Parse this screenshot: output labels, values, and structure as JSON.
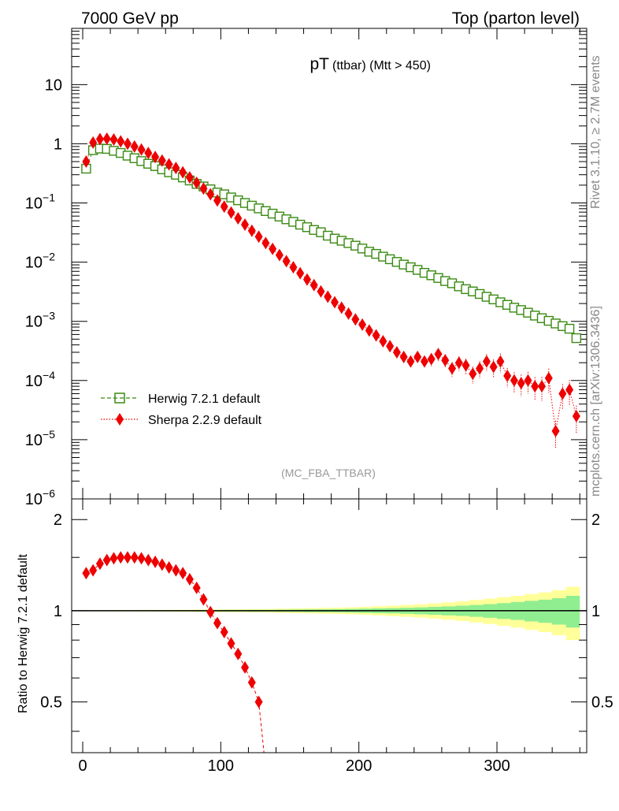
{
  "header": {
    "left": "7000 GeV pp",
    "right": "Top (parton level)"
  },
  "side": {
    "rivet": "Rivet 3.1.10, ≥ 2.7M events",
    "mcplots": "mcplots.cern.ch [arXiv:1306.3436]"
  },
  "chart_data": [
    {
      "type": "scatter",
      "title": "pT",
      "title_sub": "(ttbar) (Mtt > 450)",
      "watermark": "(MC_FBA_TTBAR)",
      "xlim": [
        -8,
        365
      ],
      "ylim_log10": [
        -6,
        1.95
      ],
      "yscale": "log",
      "y_ticks": [
        {
          "exp": 1,
          "label": "10"
        },
        {
          "exp": 0,
          "label": "1"
        },
        {
          "exp": -1,
          "base": "10",
          "sup": "−1"
        },
        {
          "exp": -2,
          "base": "10",
          "sup": "−2"
        },
        {
          "exp": -3,
          "base": "10",
          "sup": "−3"
        },
        {
          "exp": -4,
          "base": "10",
          "sup": "−4"
        },
        {
          "exp": -5,
          "base": "10",
          "sup": "−5"
        },
        {
          "exp": -6,
          "base": "10",
          "sup": "−6"
        }
      ],
      "legend_position": "lower-left",
      "series": [
        {
          "name": "Herwig 7.2.1 default",
          "color": "#3a8a12",
          "marker": "open-square",
          "line": "dashed",
          "x": [
            2.5,
            7.5,
            12.5,
            17.5,
            22.5,
            27.5,
            32.5,
            37.5,
            42.5,
            47.5,
            52.5,
            57.5,
            62.5,
            67.5,
            72.5,
            77.5,
            82.5,
            87.5,
            92.5,
            97.5,
            102.5,
            107.5,
            112.5,
            117.5,
            122.5,
            127.5,
            132.5,
            137.5,
            142.5,
            147.5,
            152.5,
            157.5,
            162.5,
            167.5,
            172.5,
            177.5,
            182.5,
            187.5,
            192.5,
            197.5,
            202.5,
            207.5,
            212.5,
            217.5,
            222.5,
            227.5,
            232.5,
            237.5,
            242.5,
            247.5,
            252.5,
            257.5,
            262.5,
            267.5,
            272.5,
            277.5,
            282.5,
            287.5,
            292.5,
            297.5,
            302.5,
            307.5,
            312.5,
            317.5,
            322.5,
            327.5,
            332.5,
            337.5,
            342.5,
            347.5,
            352.5,
            357.5
          ],
          "y": [
            0.38,
            0.78,
            0.83,
            0.82,
            0.76,
            0.7,
            0.63,
            0.57,
            0.51,
            0.46,
            0.42,
            0.37,
            0.33,
            0.3,
            0.27,
            0.24,
            0.21,
            0.19,
            0.17,
            0.15,
            0.14,
            0.124,
            0.111,
            0.1,
            0.09,
            0.081,
            0.073,
            0.066,
            0.059,
            0.053,
            0.048,
            0.043,
            0.039,
            0.035,
            0.032,
            0.028,
            0.025,
            0.023,
            0.021,
            0.019,
            0.017,
            0.015,
            0.0138,
            0.0124,
            0.0112,
            0.0101,
            0.0091,
            0.0082,
            0.0074,
            0.0066,
            0.006,
            0.0054,
            0.0048,
            0.0044,
            0.0039,
            0.0035,
            0.0032,
            0.0029,
            0.0026,
            0.00235,
            0.0021,
            0.0019,
            0.0017,
            0.00155,
            0.0014,
            0.00125,
            0.00113,
            0.00102,
            0.00092,
            0.00083,
            0.00075,
            0.00052
          ]
        },
        {
          "name": "Sherpa 2.2.9 default",
          "color": "#ee0000",
          "marker": "filled-diamond",
          "line": "dotted",
          "x": [
            2.5,
            7.5,
            12.5,
            17.5,
            22.5,
            27.5,
            32.5,
            37.5,
            42.5,
            47.5,
            52.5,
            57.5,
            62.5,
            67.5,
            72.5,
            77.5,
            82.5,
            87.5,
            92.5,
            97.5,
            102.5,
            107.5,
            112.5,
            117.5,
            122.5,
            127.5,
            132.5,
            137.5,
            142.5,
            147.5,
            152.5,
            157.5,
            162.5,
            167.5,
            172.5,
            177.5,
            182.5,
            187.5,
            192.5,
            197.5,
            202.5,
            207.5,
            212.5,
            217.5,
            222.5,
            227.5,
            232.5,
            237.5,
            242.5,
            247.5,
            252.5,
            257.5,
            262.5,
            267.5,
            272.5,
            277.5,
            282.5,
            287.5,
            292.5,
            297.5,
            302.5,
            307.5,
            312.5,
            317.5,
            322.5,
            327.5,
            332.5,
            337.5,
            342.5,
            347.5,
            352.5,
            357.5
          ],
          "y": [
            0.5,
            1.05,
            1.2,
            1.22,
            1.18,
            1.1,
            1.0,
            0.9,
            0.8,
            0.7,
            0.6,
            0.52,
            0.45,
            0.39,
            0.33,
            0.27,
            0.22,
            0.175,
            0.14,
            0.11,
            0.087,
            0.069,
            0.055,
            0.043,
            0.034,
            0.027,
            0.021,
            0.0168,
            0.0132,
            0.0104,
            0.0082,
            0.0065,
            0.0051,
            0.0041,
            0.0032,
            0.0026,
            0.0021,
            0.0017,
            0.00135,
            0.00108,
            0.00088,
            0.0007,
            0.00058,
            0.00046,
            0.00038,
            0.0003,
            0.00025,
            0.00021,
            0.00025,
            0.00021,
            0.00023,
            0.00028,
            0.00022,
            0.00016,
            0.0002,
            0.00018,
            0.00013,
            0.00016,
            0.00021,
            0.00017,
            0.00021,
            0.00012,
            0.0001,
            9e-05,
            0.0001,
            8e-05,
            8e-05,
            0.00011,
            1.4e-05,
            6e-05,
            7e-05,
            2.5e-05
          ],
          "err_rel": [
            0.04,
            0.02,
            0.02,
            0.02,
            0.02,
            0.02,
            0.02,
            0.02,
            0.02,
            0.02,
            0.03,
            0.03,
            0.03,
            0.03,
            0.03,
            0.03,
            0.03,
            0.03,
            0.04,
            0.04,
            0.04,
            0.05,
            0.05,
            0.05,
            0.05,
            0.06,
            0.06,
            0.07,
            0.07,
            0.07,
            0.08,
            0.08,
            0.09,
            0.09,
            0.1,
            0.1,
            0.11,
            0.12,
            0.12,
            0.13,
            0.14,
            0.15,
            0.15,
            0.16,
            0.17,
            0.18,
            0.2,
            0.22,
            0.22,
            0.22,
            0.24,
            0.24,
            0.26,
            0.28,
            0.28,
            0.3,
            0.32,
            0.32,
            0.32,
            0.34,
            0.36,
            0.36,
            0.38,
            0.4,
            0.4,
            0.42,
            0.44,
            0.44,
            0.5,
            0.46,
            0.46,
            0.5
          ]
        }
      ]
    },
    {
      "type": "scatter",
      "ylabel": "Ratio to Herwig 7.2.1 default",
      "xlim": [
        -8,
        365
      ],
      "ylim": [
        0.34,
        2.34
      ],
      "x_ticks": [
        0,
        100,
        200,
        300
      ],
      "y_ticks": [
        0.5,
        1,
        2
      ],
      "reference_line": 1,
      "bands": {
        "x": [
          5,
          15,
          25,
          35,
          45,
          55,
          65,
          75,
          85,
          95,
          105,
          115,
          125,
          135,
          145,
          155,
          165,
          175,
          185,
          195,
          205,
          215,
          225,
          235,
          245,
          255,
          265,
          275,
          285,
          295,
          305,
          315,
          325,
          335,
          345,
          355
        ],
        "inner_halfwidth": [
          0.002,
          0.002,
          0.003,
          0.003,
          0.003,
          0.004,
          0.004,
          0.004,
          0.005,
          0.005,
          0.006,
          0.006,
          0.007,
          0.007,
          0.008,
          0.009,
          0.01,
          0.011,
          0.012,
          0.014,
          0.016,
          0.018,
          0.02,
          0.023,
          0.026,
          0.03,
          0.034,
          0.039,
          0.045,
          0.052,
          0.06,
          0.068,
          0.078,
          0.088,
          0.1,
          0.12
        ],
        "outer_halfwidth": [
          0.004,
          0.004,
          0.005,
          0.005,
          0.006,
          0.006,
          0.007,
          0.008,
          0.009,
          0.01,
          0.011,
          0.012,
          0.013,
          0.014,
          0.016,
          0.018,
          0.02,
          0.022,
          0.024,
          0.027,
          0.031,
          0.035,
          0.04,
          0.045,
          0.051,
          0.058,
          0.066,
          0.075,
          0.085,
          0.096,
          0.108,
          0.12,
          0.135,
          0.15,
          0.17,
          0.2
        ],
        "inner_color": "#90ee90",
        "outer_color": "#ffff99"
      },
      "series": [
        {
          "name": "Sherpa 2.2.9 default",
          "color": "#ee0000",
          "marker": "filled-diamond",
          "line": "dashed",
          "x": [
            2.5,
            7.5,
            12.5,
            17.5,
            22.5,
            27.5,
            32.5,
            37.5,
            42.5,
            47.5,
            52.5,
            57.5,
            62.5,
            67.5,
            72.5,
            77.5,
            82.5,
            87.5,
            92.5,
            97.5,
            102.5,
            107.5,
            112.5,
            117.5,
            122.5,
            127.5
          ],
          "y": [
            1.33,
            1.36,
            1.43,
            1.47,
            1.49,
            1.5,
            1.5,
            1.5,
            1.49,
            1.47,
            1.45,
            1.42,
            1.39,
            1.36,
            1.33,
            1.27,
            1.19,
            1.09,
            0.99,
            0.91,
            0.85,
            0.78,
            0.72,
            0.65,
            0.58,
            0.5
          ]
        }
      ]
    }
  ]
}
